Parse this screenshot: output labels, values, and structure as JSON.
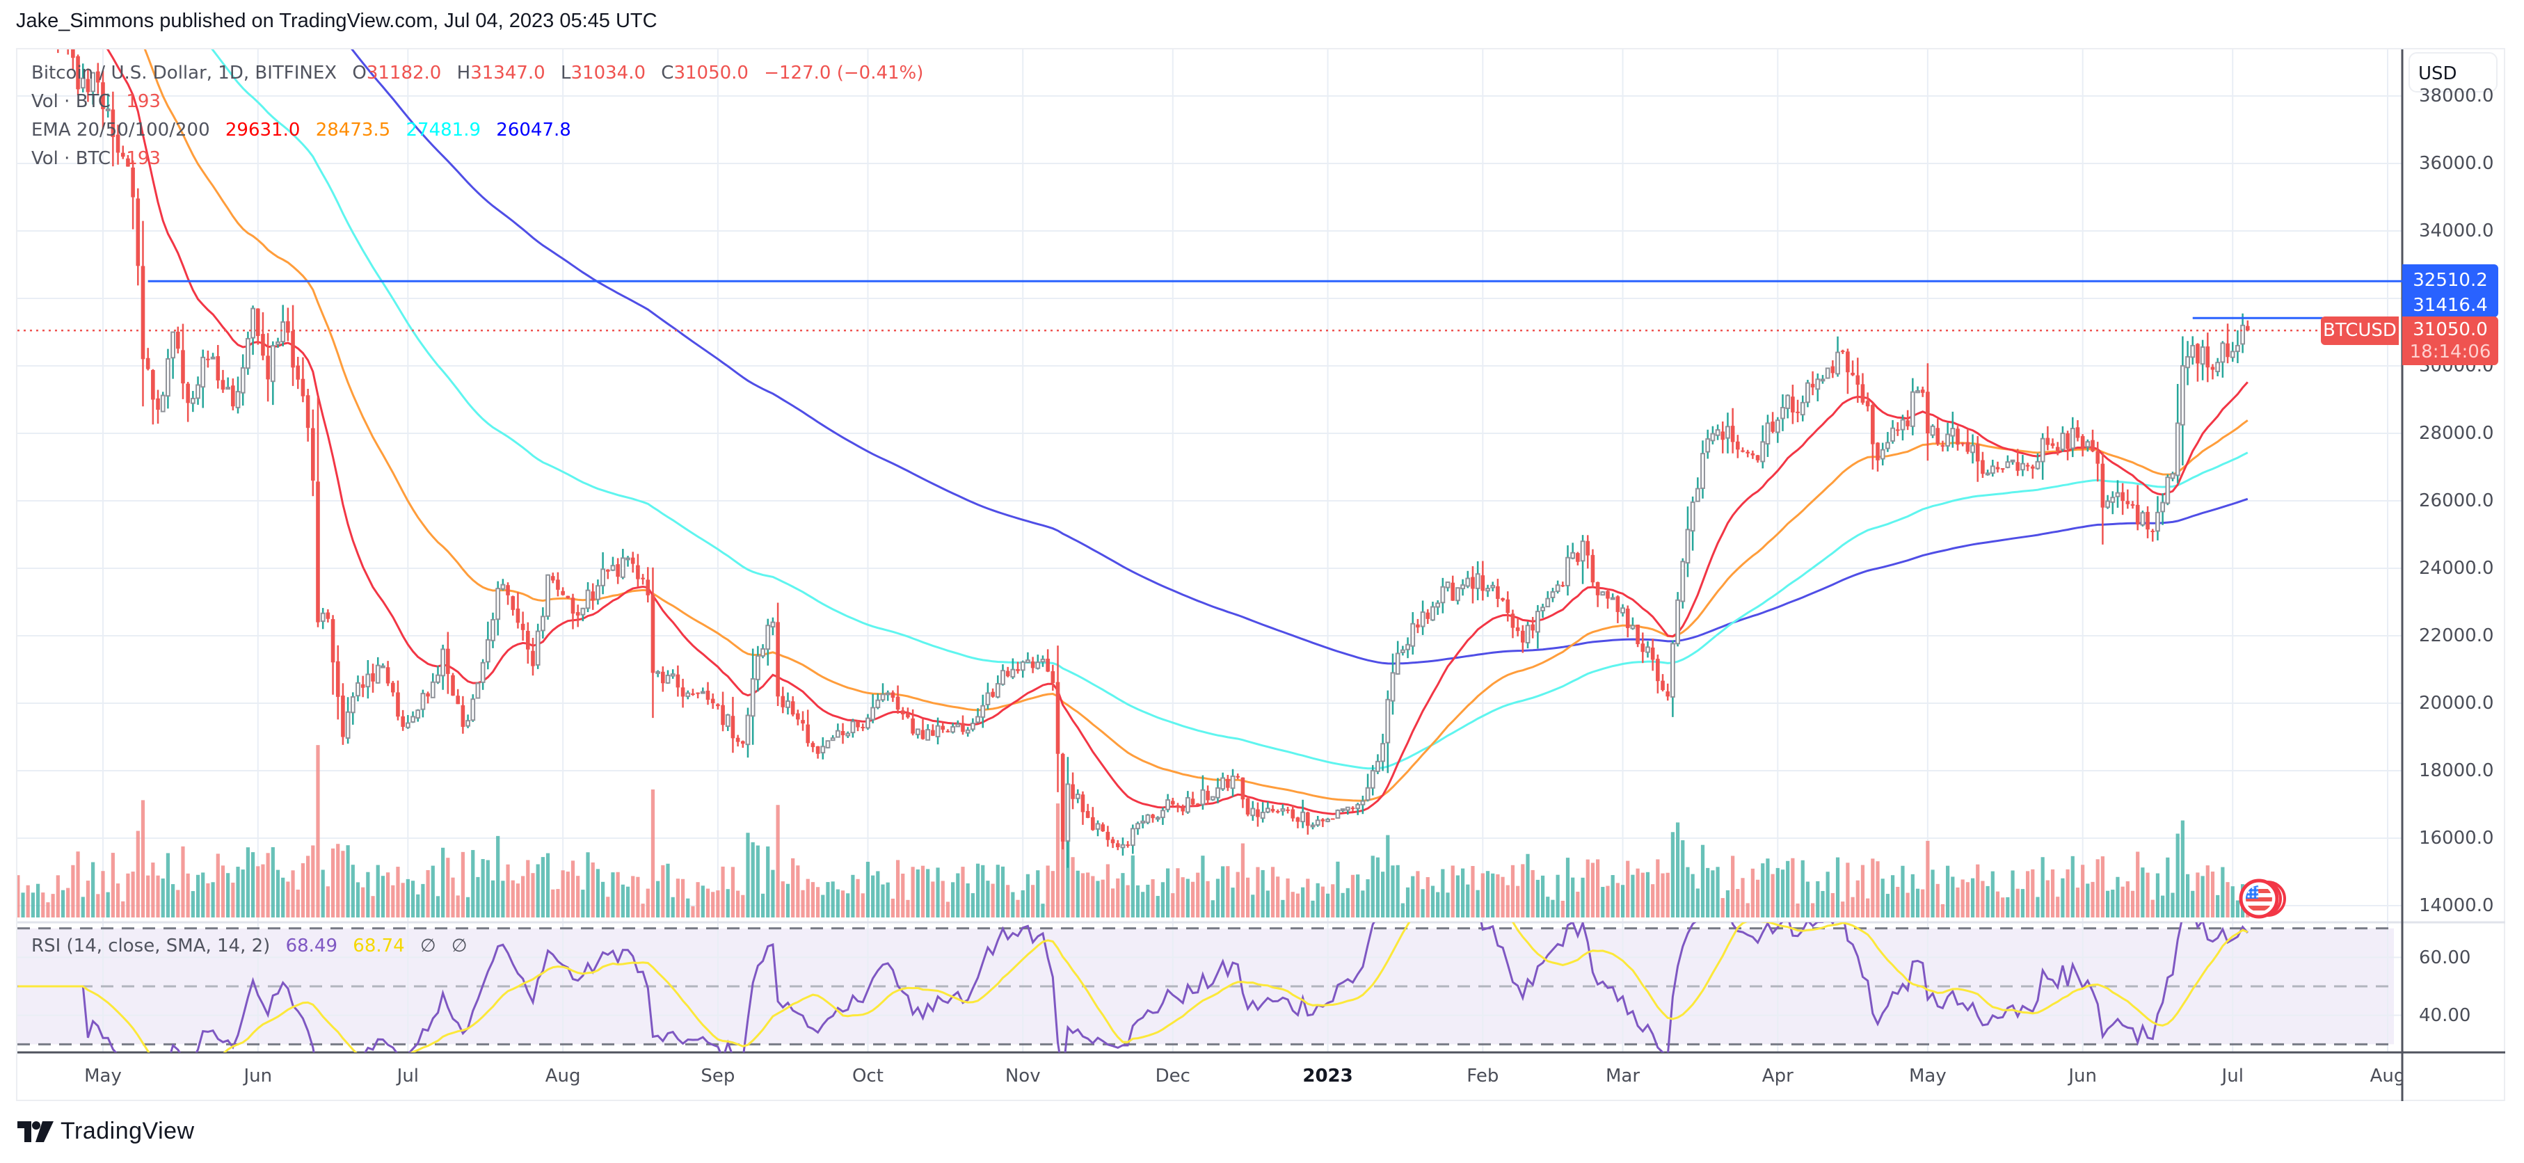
{
  "header": {
    "publish_line": "Jake_Simmons published on TradingView.com, Jul 04, 2023 05:45 UTC"
  },
  "legend": {
    "symbol_title": "Bitcoin / U.S. Dollar, 1D, BITFINEX",
    "open_label": "O",
    "open": "31182.0",
    "high_label": "H",
    "high": "31347.0",
    "low_label": "L",
    "low": "31034.0",
    "close_label": "C",
    "close": "31050.0",
    "change": "−127.0 (−0.41%)",
    "vol_label": "Vol · BTC",
    "vol_value": "193",
    "ema_label": "EMA 20/50/100/200",
    "ema20": "29631.0",
    "ema50": "28473.5",
    "ema100": "27481.9",
    "ema200": "26047.8",
    "vol2_label": "Vol · BTC",
    "vol2_value": "193"
  },
  "rsi_legend": {
    "label": "RSI (14, close, SMA, 14, 2)",
    "rsi": "68.49",
    "sma": "68.74",
    "na1": "∅",
    "na2": "∅"
  },
  "price_axis": {
    "currency": "USD",
    "ticks": [
      "38000.0",
      "36000.0",
      "34000.0",
      "30000.0",
      "28000.0",
      "26000.0",
      "24000.0",
      "22000.0",
      "20000.0",
      "18000.0",
      "16000.0",
      "14000.0"
    ],
    "tick_values": [
      38000,
      36000,
      34000,
      30000,
      28000,
      26000,
      24000,
      22000,
      20000,
      18000,
      16000,
      14000
    ],
    "tag_line1": "32510.2",
    "tag_line2": "31416.4",
    "tag_price": "31050.0",
    "tag_countdown": "18:14:06",
    "symbol_tag": "BTCUSD"
  },
  "rsi_axis": {
    "ticks": [
      "60.00",
      "40.00"
    ]
  },
  "time_axis": {
    "labels": [
      {
        "text": "May",
        "day": 0
      },
      {
        "text": "Jun",
        "day": 31
      },
      {
        "text": "Jul",
        "day": 61
      },
      {
        "text": "Aug",
        "day": 92
      },
      {
        "text": "Sep",
        "day": 123
      },
      {
        "text": "Oct",
        "day": 153
      },
      {
        "text": "Nov",
        "day": 184
      },
      {
        "text": "Dec",
        "day": 214
      },
      {
        "text": "2023",
        "day": 245,
        "bold": true
      },
      {
        "text": "Feb",
        "day": 276
      },
      {
        "text": "Mar",
        "day": 304
      },
      {
        "text": "Apr",
        "day": 335
      },
      {
        "text": "May",
        "day": 365
      },
      {
        "text": "Jun",
        "day": 396
      },
      {
        "text": "Jul",
        "day": 426
      },
      {
        "text": "Aug",
        "day": 457
      }
    ]
  },
  "footer": {
    "brand": "TradingView"
  },
  "colors": {
    "up_wick": "#26a69a",
    "up_border": "#8f9299",
    "down": "#ef5350",
    "vol_up": "#4db6ac",
    "vol_down": "#f28b88",
    "ema20": "#f23645",
    "ema50": "#ff9d3b",
    "ema100": "#5ff5ef",
    "ema200": "#4f4ee6",
    "rsi": "#7e57c2",
    "rsi_sma": "#fce83a",
    "hline": "#2962ff",
    "grid": "#e9eef5"
  },
  "chart_data": {
    "type": "candlestick",
    "title": "Bitcoin / U.S. Dollar, 1D, BITFINEX",
    "x_range": [
      "2022-04-14",
      "2023-08-01"
    ],
    "ylim": [
      13500,
      39500
    ],
    "y_ticks": [
      14000,
      16000,
      18000,
      20000,
      22000,
      24000,
      26000,
      28000,
      30000,
      34000,
      36000,
      38000
    ],
    "close_keypoints": [
      [
        "2022-04-14",
        40500
      ],
      [
        "2022-04-20",
        41500
      ],
      [
        "2022-04-26",
        38200
      ],
      [
        "2022-04-30",
        38400
      ],
      [
        "2022-05-05",
        36200
      ],
      [
        "2022-05-07",
        35000
      ],
      [
        "2022-05-09",
        30200
      ],
      [
        "2022-05-11",
        29000
      ],
      [
        "2022-05-12",
        28700
      ],
      [
        "2022-05-15",
        31000
      ],
      [
        "2022-05-18",
        28900
      ],
      [
        "2022-05-22",
        30200
      ],
      [
        "2022-05-27",
        28800
      ],
      [
        "2022-05-31",
        31700
      ],
      [
        "2022-06-03",
        29600
      ],
      [
        "2022-06-06",
        31300
      ],
      [
        "2022-06-10",
        29100
      ],
      [
        "2022-06-12",
        26600
      ],
      [
        "2022-06-13",
        22400
      ],
      [
        "2022-06-15",
        22500
      ],
      [
        "2022-06-18",
        19000
      ],
      [
        "2022-06-21",
        20600
      ],
      [
        "2022-06-26",
        21100
      ],
      [
        "2022-06-30",
        19300
      ],
      [
        "2022-07-05",
        20200
      ],
      [
        "2022-07-08",
        21600
      ],
      [
        "2022-07-12",
        19300
      ],
      [
        "2022-07-16",
        21200
      ],
      [
        "2022-07-19",
        23400
      ],
      [
        "2022-07-21",
        23200
      ],
      [
        "2022-07-26",
        21100
      ],
      [
        "2022-07-29",
        23800
      ],
      [
        "2022-08-04",
        22600
      ],
      [
        "2022-08-10",
        23900
      ],
      [
        "2022-08-14",
        24300
      ],
      [
        "2022-08-18",
        23200
      ],
      [
        "2022-08-19",
        20900
      ],
      [
        "2022-08-26",
        20300
      ],
      [
        "2022-08-31",
        20000
      ],
      [
        "2022-09-06",
        18800
      ],
      [
        "2022-09-09",
        21400
      ],
      [
        "2022-09-12",
        22400
      ],
      [
        "2022-09-13",
        20200
      ],
      [
        "2022-09-18",
        19400
      ],
      [
        "2022-09-21",
        18500
      ],
      [
        "2022-09-27",
        19100
      ],
      [
        "2022-10-05",
        20300
      ],
      [
        "2022-10-10",
        19100
      ],
      [
        "2022-10-18",
        19300
      ],
      [
        "2022-10-21",
        19200
      ],
      [
        "2022-10-25",
        20300
      ],
      [
        "2022-10-29",
        20800
      ],
      [
        "2022-11-05",
        21300
      ],
      [
        "2022-11-07",
        20600
      ],
      [
        "2022-11-08",
        18500
      ],
      [
        "2022-11-09",
        15900
      ],
      [
        "2022-11-10",
        17600
      ],
      [
        "2022-11-14",
        16600
      ],
      [
        "2022-11-21",
        15800
      ],
      [
        "2022-11-25",
        16500
      ],
      [
        "2022-12-01",
        17000
      ],
      [
        "2022-12-05",
        17000
      ],
      [
        "2022-12-14",
        17800
      ],
      [
        "2022-12-16",
        16700
      ],
      [
        "2022-12-22",
        16800
      ],
      [
        "2022-12-31",
        16500
      ],
      [
        "2023-01-08",
        17100
      ],
      [
        "2023-01-12",
        18800
      ],
      [
        "2023-01-14",
        20900
      ],
      [
        "2023-01-20",
        22700
      ],
      [
        "2023-01-29",
        23700
      ],
      [
        "2023-02-02",
        23400
      ],
      [
        "2023-02-09",
        21800
      ],
      [
        "2023-02-16",
        23500
      ],
      [
        "2023-02-21",
        24800
      ],
      [
        "2023-02-24",
        23200
      ],
      [
        "2023-03-03",
        22300
      ],
      [
        "2023-03-10",
        20200
      ],
      [
        "2023-03-13",
        24200
      ],
      [
        "2023-03-17",
        27400
      ],
      [
        "2023-03-22",
        28200
      ],
      [
        "2023-03-28",
        27200
      ],
      [
        "2023-03-30",
        28300
      ],
      [
        "2023-04-10",
        29600
      ],
      [
        "2023-04-13",
        30400
      ],
      [
        "2023-04-19",
        28800
      ],
      [
        "2023-04-21",
        27200
      ],
      [
        "2023-04-26",
        28400
      ],
      [
        "2023-04-30",
        29200
      ],
      [
        "2023-05-01",
        28000
      ],
      [
        "2023-05-08",
        27700
      ],
      [
        "2023-05-12",
        26800
      ],
      [
        "2023-05-20",
        27100
      ],
      [
        "2023-05-28",
        28000
      ],
      [
        "2023-06-04",
        27100
      ],
      [
        "2023-06-05",
        25800
      ],
      [
        "2023-06-10",
        25900
      ],
      [
        "2023-06-15",
        25100
      ],
      [
        "2023-06-19",
        26800
      ],
      [
        "2023-06-20",
        28300
      ],
      [
        "2023-06-21",
        30000
      ],
      [
        "2023-06-23",
        30600
      ],
      [
        "2023-06-28",
        30100
      ],
      [
        "2023-07-02",
        30600
      ],
      [
        "2023-07-03",
        31200
      ],
      [
        "2023-07-04",
        31050
      ]
    ],
    "horizontal_lines": [
      {
        "price": 32510.2,
        "from": "2022-05-10",
        "color": "#2962ff"
      },
      {
        "price": 31416.4,
        "from": "2023-06-23",
        "to": "2023-07-19",
        "color": "#2962ff"
      }
    ],
    "last_price": 31050.0,
    "ema_last": {
      "ema20": 29631.0,
      "ema50": 28473.5,
      "ema100": 27481.9,
      "ema200": 26047.8
    },
    "volume_last": 193,
    "rsi": {
      "period": 14,
      "last": 68.49,
      "sma_last": 68.74,
      "bands": [
        70,
        50,
        30
      ],
      "ticks": [
        60,
        40
      ]
    }
  }
}
